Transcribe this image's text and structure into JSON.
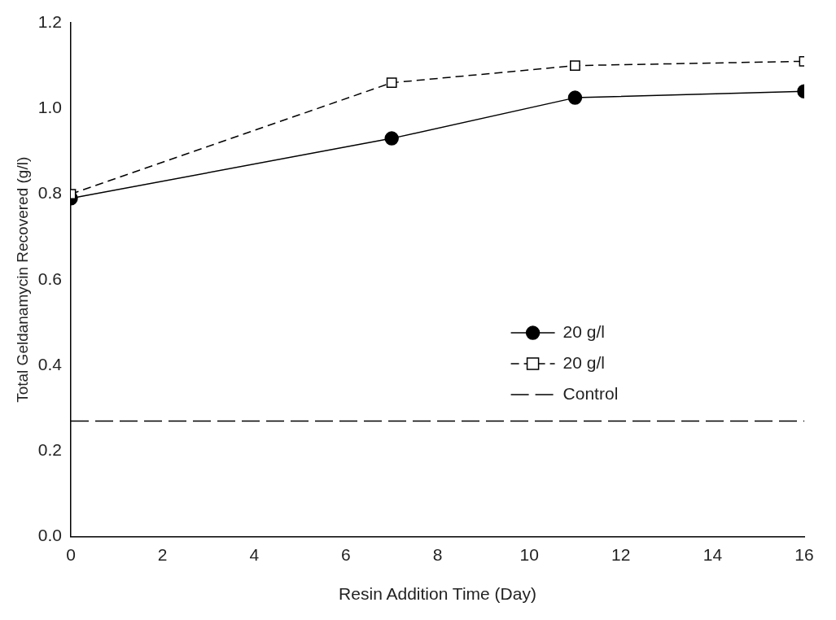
{
  "chart_data": {
    "type": "line",
    "xlabel": "Resin Addition Time (Day)",
    "ylabel": "Total Geldanamycin Recovered (g/l)",
    "xlim": [
      0,
      16
    ],
    "xticks": [
      0,
      2,
      4,
      6,
      8,
      10,
      12,
      14,
      16
    ],
    "ylim": [
      0,
      1.2
    ],
    "yticks": [
      {
        "value": 0,
        "label": "0.0"
      },
      {
        "value": 0.2,
        "label": "0.2"
      },
      {
        "value": 0.4,
        "label": "0.4"
      },
      {
        "value": 0.6,
        "label": "0.6"
      },
      {
        "value": 0.8,
        "label": "0.8"
      },
      {
        "value": 1,
        "label": "1.0"
      },
      {
        "value": 1.2,
        "label": "1.2"
      }
    ],
    "x": [
      0,
      7,
      11,
      16
    ],
    "series": [
      {
        "name": "20 g/l",
        "color": "#000000",
        "marker": "circle",
        "line_style": "solid",
        "values": [
          0.79,
          0.93,
          1.025,
          1.04
        ]
      },
      {
        "name": "20 g/l",
        "color": "#000000",
        "marker": "square",
        "line_style": "dashed",
        "values": [
          0.8,
          1.06,
          1.1,
          1.11
        ]
      }
    ],
    "ref_lines": [
      {
        "axis": "y",
        "value": 0.27,
        "label": "Control",
        "color": "#000000",
        "line_style": "dashed"
      }
    ],
    "grid": false,
    "legend": "right"
  }
}
